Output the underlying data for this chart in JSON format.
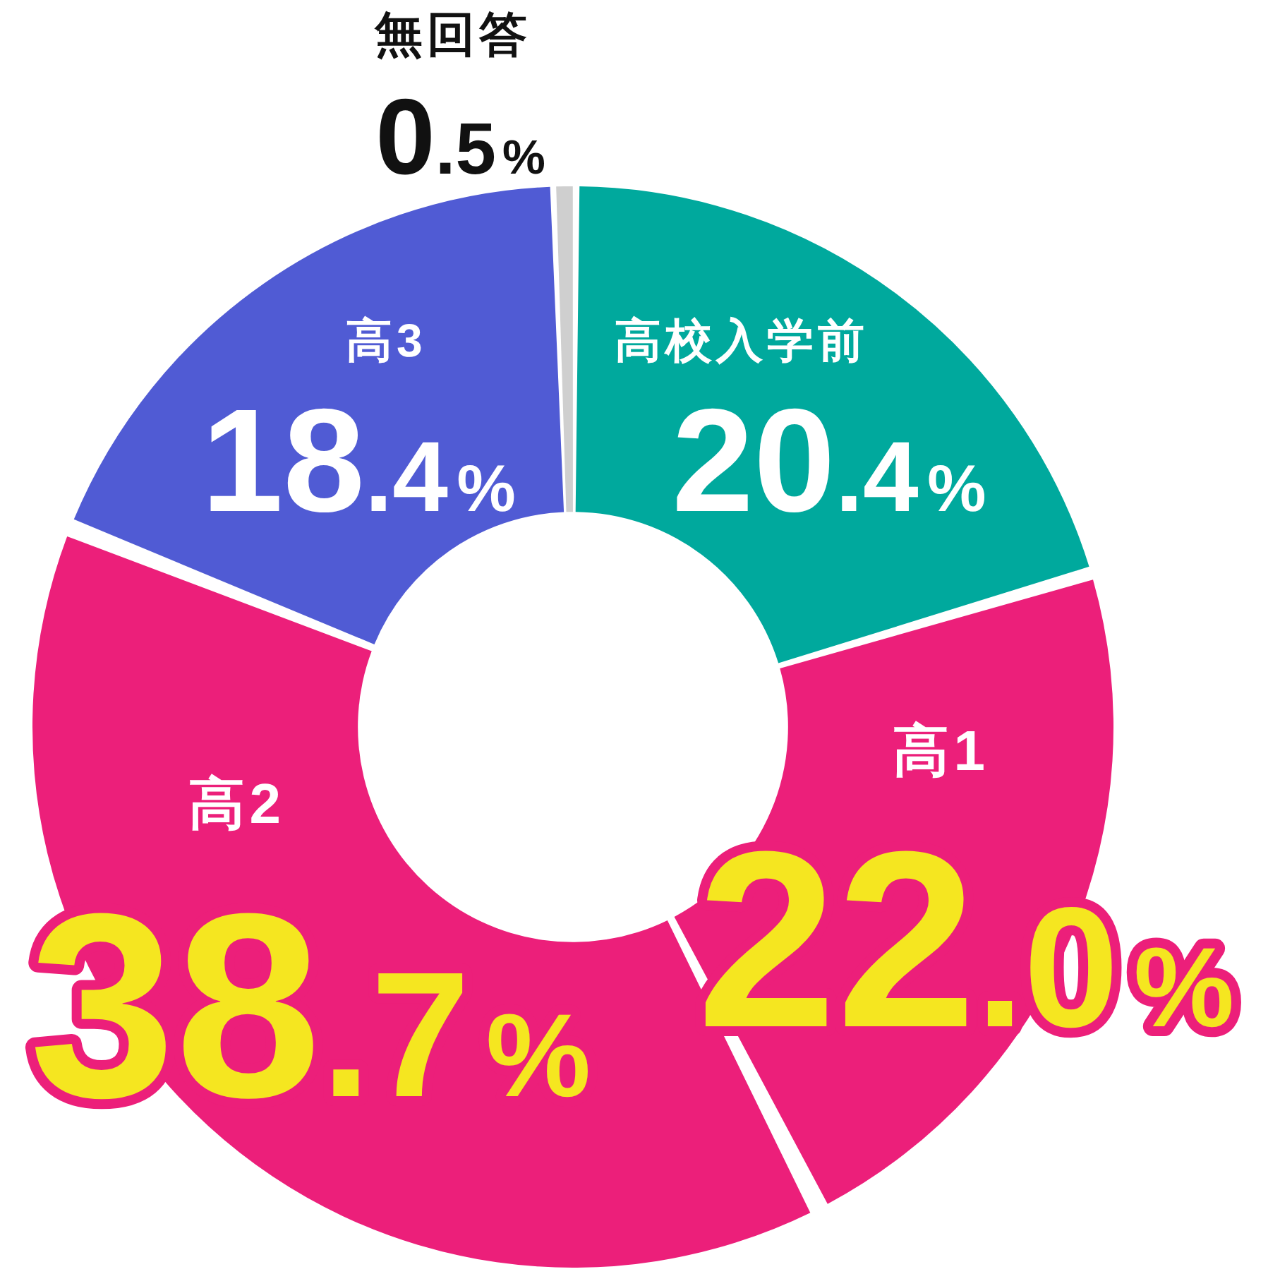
{
  "chart_data": {
    "type": "donut",
    "categories": [
      "高校入学前",
      "高1",
      "高2",
      "高3",
      "無回答"
    ],
    "values": [
      20.4,
      22.0,
      38.7,
      18.4,
      0.5
    ],
    "colors": [
      "#00a99d",
      "#ec1f7a",
      "#ec1f7a",
      "#505bd4",
      "#cfcfcf"
    ],
    "value_labels": [
      "20.4%",
      "22.0%",
      "38.7%",
      "18.4%",
      "0.5%"
    ]
  }
}
